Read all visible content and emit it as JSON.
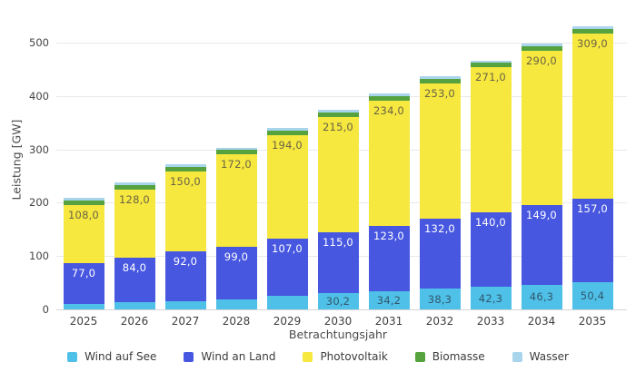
{
  "chart_data": {
    "type": "bar",
    "stacked": true,
    "title": "",
    "xlabel": "Betrachtungsjahr",
    "ylabel": "Leistung [GW]",
    "ylim": [
      0,
      560
    ],
    "yticks": [
      0,
      100,
      200,
      300,
      400,
      500
    ],
    "grid": true,
    "legend_position": "bottom",
    "categories": [
      "2025",
      "2026",
      "2027",
      "2028",
      "2029",
      "2030",
      "2031",
      "2032",
      "2033",
      "2034",
      "2035"
    ],
    "series": [
      {
        "name": "Wind auf See",
        "color": "#4fc0e8",
        "label_color": "#31586c",
        "values": [
          10,
          13,
          16,
          19,
          25,
          30.2,
          34.2,
          38.3,
          42.3,
          46.3,
          50.4
        ],
        "labels": [
          "",
          "",
          "",
          "",
          "",
          "30,2",
          "34,2",
          "38,3",
          "42,3",
          "46,3",
          "50,4"
        ],
        "label_pos": "middle"
      },
      {
        "name": "Wind an Land",
        "color": "#4757e0",
        "label_color": "#ffffff",
        "values": [
          77,
          84,
          92,
          99,
          107,
          115,
          123,
          132,
          140,
          149,
          157
        ],
        "labels": [
          "77,0",
          "84,0",
          "92,0",
          "99,0",
          "107,0",
          "115,0",
          "123,0",
          "132,0",
          "140,0",
          "149,0",
          "157,0"
        ],
        "label_pos": "top"
      },
      {
        "name": "Photovoltaik",
        "color": "#f6e83e",
        "label_color": "#6b6345",
        "values": [
          108,
          128,
          150,
          172,
          194,
          215,
          234,
          253,
          271,
          290,
          309
        ],
        "labels": [
          "108,0",
          "128,0",
          "150,0",
          "172,0",
          "194,0",
          "215,0",
          "234,0",
          "253,0",
          "271,0",
          "290,0",
          "309,0"
        ],
        "label_pos": "top"
      },
      {
        "name": "Biomasse",
        "color": "#55a23f",
        "label_color": "#2d5221",
        "values": [
          8.5,
          8.5,
          8.5,
          8.5,
          8.5,
          8.5,
          8.5,
          8.5,
          8.5,
          8.5,
          8.5
        ],
        "labels": [
          "",
          "",
          "",
          "",
          "",
          "",
          "",
          "",
          "",
          "",
          ""
        ],
        "label_pos": "middle"
      },
      {
        "name": "Wasser",
        "color": "#a9d5ec",
        "label_color": "#3d5a6b",
        "values": [
          5,
          5,
          5,
          5,
          5,
          5,
          5,
          5,
          5,
          5,
          5
        ],
        "labels": [
          "",
          "",
          "",
          "",
          "",
          "",
          "",
          "",
          "",
          "",
          ""
        ],
        "label_pos": "middle"
      }
    ]
  }
}
